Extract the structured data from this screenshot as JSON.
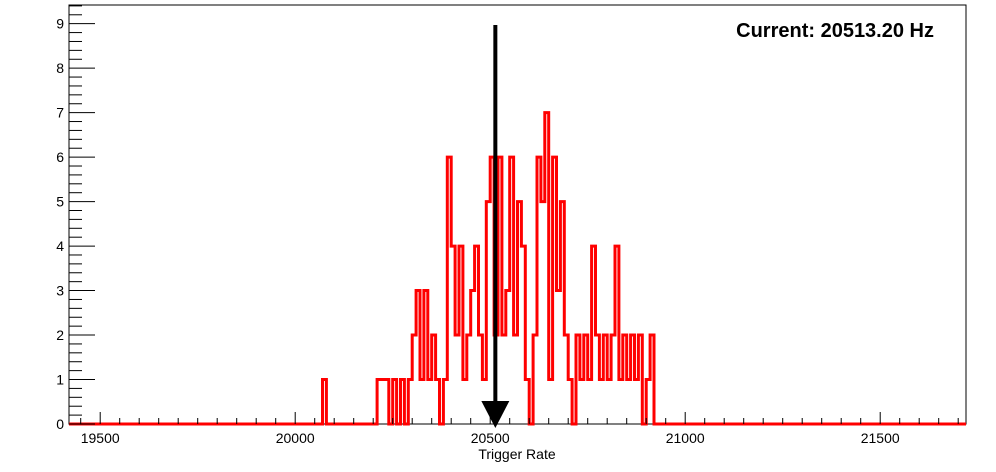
{
  "chart_data": {
    "type": "histogram",
    "title": "",
    "xlabel": "Trigger Rate",
    "ylabel": "",
    "annotation": "Current: 20513.20 Hz",
    "xlim": [
      19420,
      21720
    ],
    "ylim": [
      0,
      9.42
    ],
    "x_ticks": [
      19500,
      20000,
      20500,
      21000,
      21500
    ],
    "y_ticks": [
      0,
      1,
      2,
      3,
      4,
      5,
      6,
      7,
      8,
      9
    ],
    "grid": false,
    "legend": "none",
    "bin_width": 10,
    "marker_value": 20513.2,
    "line_color": "#ff0000",
    "arrow_color": "#000000",
    "bins": [
      [
        20070,
        1
      ],
      [
        20210,
        1
      ],
      [
        20220,
        1
      ],
      [
        20230,
        1
      ],
      [
        20240,
        0
      ],
      [
        20250,
        1
      ],
      [
        20260,
        0
      ],
      [
        20270,
        1
      ],
      [
        20280,
        0
      ],
      [
        20290,
        1
      ],
      [
        20300,
        2
      ],
      [
        20310,
        3
      ],
      [
        20320,
        1
      ],
      [
        20330,
        3
      ],
      [
        20340,
        1
      ],
      [
        20350,
        2
      ],
      [
        20360,
        1
      ],
      [
        20370,
        0
      ],
      [
        20380,
        1
      ],
      [
        20390,
        6
      ],
      [
        20400,
        4
      ],
      [
        20410,
        2
      ],
      [
        20420,
        4
      ],
      [
        20430,
        1
      ],
      [
        20440,
        2
      ],
      [
        20450,
        3
      ],
      [
        20460,
        4
      ],
      [
        20470,
        2
      ],
      [
        20480,
        1
      ],
      [
        20490,
        5
      ],
      [
        20500,
        6
      ],
      [
        20510,
        2
      ],
      [
        20520,
        6
      ],
      [
        20530,
        2
      ],
      [
        20540,
        3
      ],
      [
        20550,
        6
      ],
      [
        20560,
        2
      ],
      [
        20570,
        5
      ],
      [
        20580,
        4
      ],
      [
        20590,
        1
      ],
      [
        20600,
        0
      ],
      [
        20610,
        2
      ],
      [
        20620,
        6
      ],
      [
        20630,
        5
      ],
      [
        20640,
        7
      ],
      [
        20650,
        1
      ],
      [
        20660,
        6
      ],
      [
        20670,
        3
      ],
      [
        20680,
        5
      ],
      [
        20690,
        2
      ],
      [
        20700,
        1
      ],
      [
        20710,
        0
      ],
      [
        20720,
        2
      ],
      [
        20730,
        1
      ],
      [
        20740,
        2
      ],
      [
        20750,
        1
      ],
      [
        20760,
        4
      ],
      [
        20770,
        2
      ],
      [
        20780,
        1
      ],
      [
        20790,
        2
      ],
      [
        20800,
        1
      ],
      [
        20810,
        2
      ],
      [
        20820,
        4
      ],
      [
        20830,
        1
      ],
      [
        20840,
        2
      ],
      [
        20850,
        1
      ],
      [
        20860,
        2
      ],
      [
        20870,
        1
      ],
      [
        20880,
        2
      ],
      [
        20890,
        0
      ],
      [
        20900,
        1
      ],
      [
        20910,
        2
      ],
      [
        20920,
        0
      ]
    ]
  }
}
